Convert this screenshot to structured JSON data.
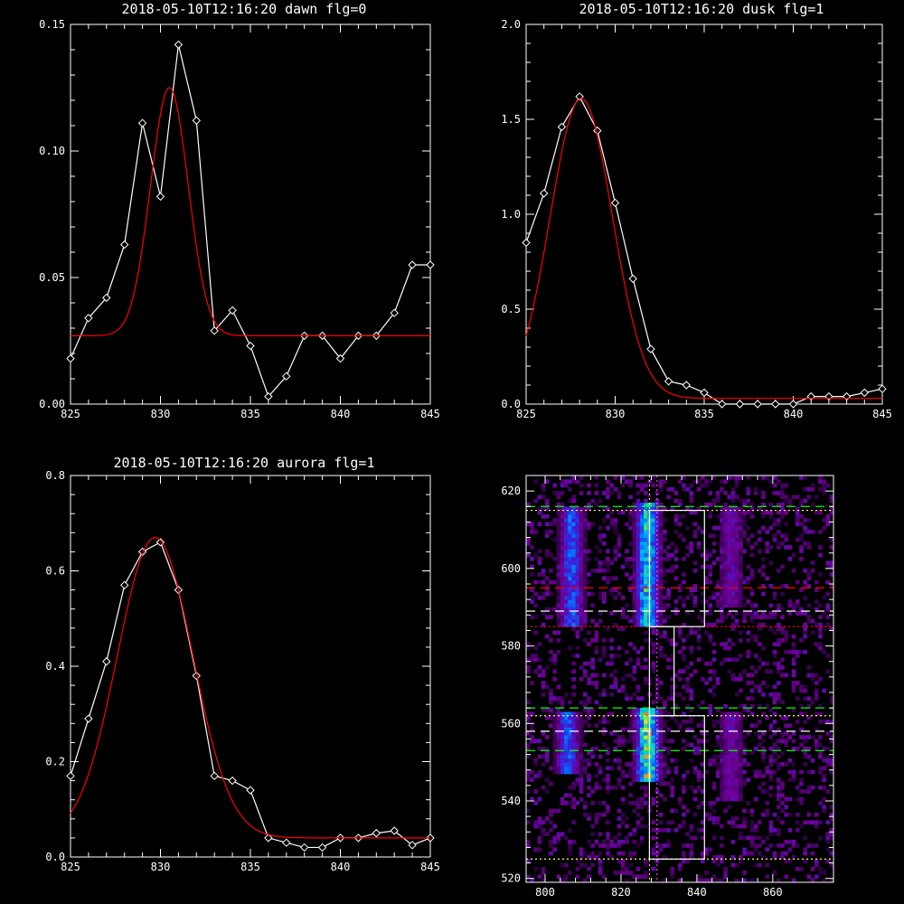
{
  "chart_data": [
    {
      "type": "line",
      "title": "2018-05-10T12:16:20 dawn flg=0",
      "xlim": [
        825,
        845
      ],
      "ylim": [
        0.0,
        0.15
      ],
      "xticks": [
        "825",
        "830",
        "835",
        "840",
        "845"
      ],
      "yticks": [
        "0.00",
        "0.05",
        "0.10",
        "0.15"
      ],
      "series": [
        {
          "color": "#ffffff",
          "markers": "diamond",
          "x": [
            825,
            826,
            827,
            828,
            829,
            830,
            831,
            832,
            833,
            834,
            835,
            836,
            837,
            838,
            839,
            840,
            841,
            842,
            843,
            844,
            845
          ],
          "y": [
            0.018,
            0.034,
            0.042,
            0.063,
            0.111,
            0.082,
            0.142,
            0.112,
            0.029,
            0.037,
            0.023,
            0.003,
            0.011,
            0.027,
            0.027,
            0.018,
            0.027,
            0.027,
            0.036,
            0.055,
            0.055
          ]
        },
        {
          "color": "#ff0000",
          "markers": "none",
          "fit": "gaussian",
          "baseline": 0.027,
          "amplitude": 0.098,
          "center": 830.5,
          "sigma": 1.05
        }
      ]
    },
    {
      "type": "line",
      "title": "2018-05-10T12:16:20 dusk flg=1",
      "xlim": [
        825,
        845
      ],
      "ylim": [
        0.0,
        2.0
      ],
      "xticks": [
        "825",
        "830",
        "835",
        "840",
        "845"
      ],
      "yticks": [
        "0.0",
        "0.5",
        "1.0",
        "1.5",
        "2.0"
      ],
      "series": [
        {
          "color": "#ffffff",
          "markers": "diamond",
          "x": [
            825,
            826,
            827,
            828,
            829,
            830,
            831,
            832,
            833,
            834,
            835,
            836,
            837,
            838,
            839,
            840,
            841,
            842,
            843,
            844,
            845
          ],
          "y": [
            0.85,
            1.11,
            1.46,
            1.62,
            1.44,
            1.06,
            0.66,
            0.29,
            0.12,
            0.1,
            0.06,
            0.0,
            0.0,
            0.0,
            0.0,
            0.0,
            0.04,
            0.04,
            0.04,
            0.06,
            0.08
          ]
        },
        {
          "color": "#ff0000",
          "markers": "none",
          "fit": "gaussian",
          "baseline": 0.03,
          "amplitude": 1.58,
          "center": 828.1,
          "sigma": 1.75
        }
      ]
    },
    {
      "type": "line",
      "title": "2018-05-10T12:16:20 aurora flg=1",
      "xlim": [
        825,
        845
      ],
      "ylim": [
        0.0,
        0.8
      ],
      "xticks": [
        "825",
        "830",
        "835",
        "840",
        "845"
      ],
      "yticks": [
        "0.0",
        "0.2",
        "0.4",
        "0.6",
        "0.8"
      ],
      "series": [
        {
          "color": "#ffffff",
          "markers": "diamond",
          "x": [
            825,
            826,
            827,
            828,
            829,
            830,
            831,
            832,
            833,
            834,
            835,
            836,
            837,
            838,
            839,
            840,
            841,
            842,
            843,
            844,
            845
          ],
          "y": [
            0.17,
            0.29,
            0.41,
            0.57,
            0.64,
            0.66,
            0.56,
            0.38,
            0.17,
            0.16,
            0.14,
            0.04,
            0.03,
            0.02,
            0.02,
            0.04,
            0.04,
            0.05,
            0.055,
            0.025,
            0.04
          ]
        },
        {
          "color": "#ff0000",
          "markers": "none",
          "fit": "gaussian",
          "baseline": 0.04,
          "amplitude": 0.63,
          "center": 829.7,
          "sigma": 2.1
        }
      ]
    },
    {
      "type": "heatmap",
      "title": "",
      "xlim": [
        795,
        876
      ],
      "ylim": [
        519,
        624
      ],
      "xticks": [
        "800",
        "820",
        "840",
        "860"
      ],
      "yticks": [
        "520",
        "540",
        "560",
        "580",
        "600",
        "620"
      ],
      "bright_columns": [
        {
          "x": 807,
          "y_range": [
            585,
            615
          ],
          "intensity": "medium"
        },
        {
          "x": 827,
          "y_range": [
            585,
            616
          ],
          "intensity": "high"
        },
        {
          "x": 849,
          "y_range": [
            590,
            615
          ],
          "intensity": "low"
        },
        {
          "x": 806,
          "y_range": [
            547,
            562
          ],
          "intensity": "medium"
        },
        {
          "x": 827,
          "y_range": [
            545,
            563
          ],
          "intensity": "peak"
        },
        {
          "x": 849,
          "y_range": [
            540,
            562
          ],
          "intensity": "low"
        }
      ],
      "hlines": [
        {
          "y": 616,
          "color": "#00ff00",
          "style": "dashed"
        },
        {
          "y": 615,
          "color": "#ffff66",
          "style": "dotted"
        },
        {
          "y": 595,
          "color": "#ff0000",
          "style": "dashed"
        },
        {
          "y": 589,
          "color": "#ffffff",
          "style": "dashed"
        },
        {
          "y": 585,
          "color": "#ff0000",
          "style": "dotted"
        },
        {
          "y": 564,
          "color": "#00ff00",
          "style": "dashed"
        },
        {
          "y": 562,
          "color": "#ffff66",
          "style": "dotted"
        },
        {
          "y": 558,
          "color": "#ffffff",
          "style": "dashed"
        },
        {
          "y": 553,
          "color": "#00ff00",
          "style": "dashed"
        },
        {
          "y": 525,
          "color": "#ffff66",
          "style": "dotted"
        }
      ],
      "vlines": [
        {
          "x": 827.5,
          "color": "#ffff66",
          "style": "dotted"
        },
        {
          "x": 829.5,
          "color": "#ff66ff",
          "style": "dotted"
        }
      ],
      "boxes": [
        {
          "x": [
            827.5,
            842
          ],
          "y": [
            585,
            615
          ]
        },
        {
          "x": [
            827.5,
            834
          ],
          "y": [
            562,
            585
          ]
        },
        {
          "x": [
            827.5,
            842
          ],
          "y": [
            525,
            562
          ]
        }
      ]
    }
  ]
}
